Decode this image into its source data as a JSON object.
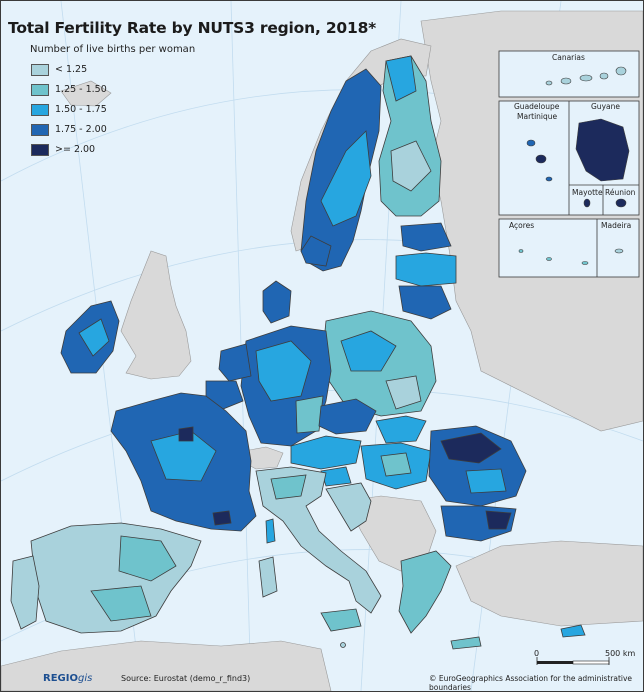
{
  "title": "Total Fertility Rate by NUTS3 region, 2018*",
  "legend": {
    "title": "Number of live births per woman",
    "items": [
      {
        "label": "< 1.25",
        "color": "#a9d2dc"
      },
      {
        "label": "1.25 - 1.50",
        "color": "#6fc3cc"
      },
      {
        "label": "1.50 - 1.75",
        "color": "#27a6e0"
      },
      {
        "label": "1.75 - 2.00",
        "color": "#2066b3"
      },
      {
        "label": ">= 2.00",
        "color": "#1c2a5c"
      }
    ]
  },
  "colors": {
    "sea": "#e5f2fb",
    "non_eu_land": "#d9d9d9",
    "border": "#4a4a4a"
  },
  "insets": {
    "canarias": "Canarias",
    "guadeloupe": "Guadeloupe",
    "martinique": "Martinique",
    "guyane": "Guyane",
    "mayotte": "Mayotte",
    "reunion": "Réunion",
    "acores": "Açores",
    "madeira": "Madeira"
  },
  "scale_bar": {
    "label_start": "0",
    "label_end": "500 km"
  },
  "footer": {
    "logo_bold": "REGIO",
    "logo_italic": "gis",
    "source": "Source: Eurostat (demo_r_find3)",
    "copyright": "© EuroGeographics Association for the administrative boundaries"
  }
}
